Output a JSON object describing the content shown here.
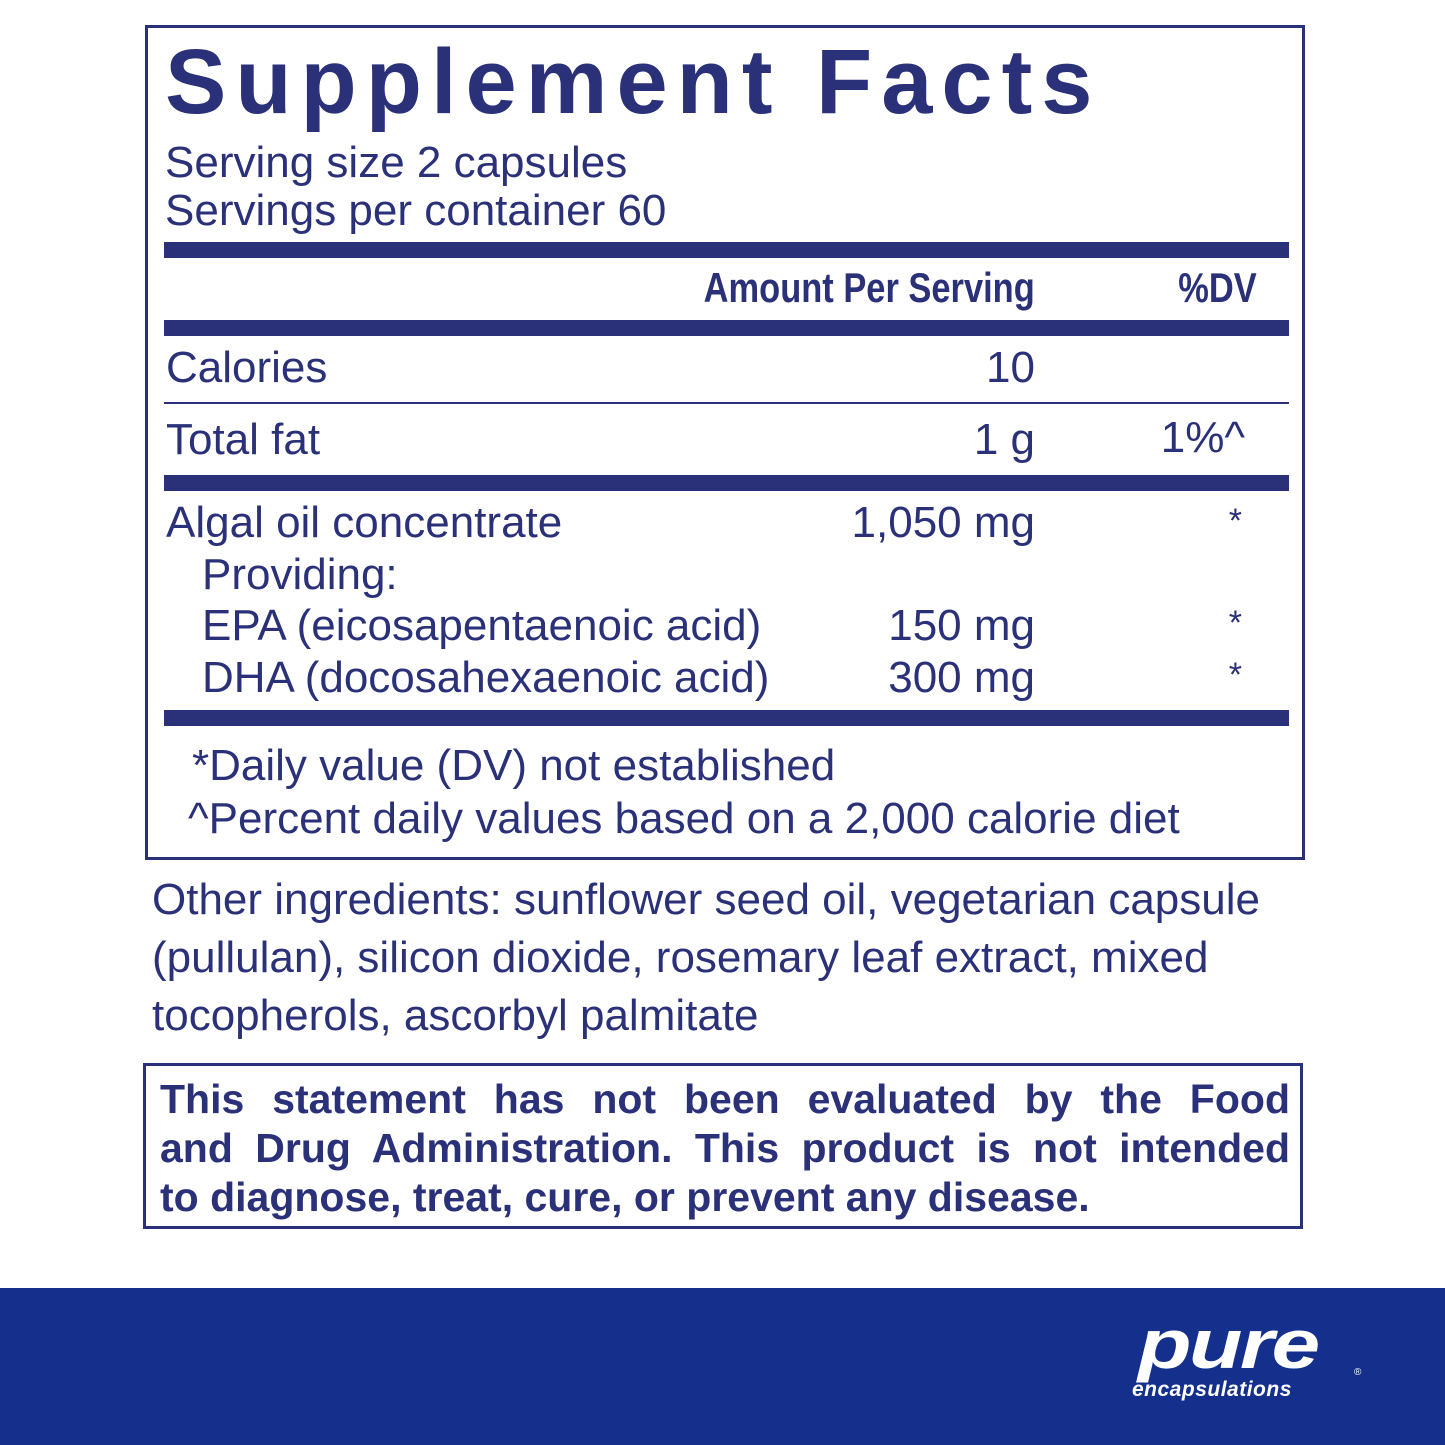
{
  "panel": {
    "title": "Supplement Facts",
    "serving_size": "Serving size 2 capsules",
    "servings_per_container": "Servings per container 60",
    "header": {
      "amount": "Amount Per Serving",
      "dv": "%DV"
    },
    "rows": [
      {
        "name": "Calories",
        "amount": "10",
        "dv": ""
      },
      {
        "name": "Total fat",
        "amount": "1 g",
        "dv": "1%^"
      },
      {
        "name": "Algal oil concentrate",
        "amount": "1,050 mg",
        "dv": "*"
      },
      {
        "name": "Providing:",
        "amount": "",
        "dv": ""
      },
      {
        "name": "EPA (eicosapentaenoic acid)",
        "amount": "150 mg",
        "dv": "*"
      },
      {
        "name": "DHA (docosahexaenoic acid)",
        "amount": "300 mg",
        "dv": "*"
      }
    ],
    "footnotes": [
      "*Daily value (DV) not established",
      "^Percent daily values based on a 2,000 calorie diet"
    ]
  },
  "other_ingredients": [
    "Other ingredients: sunflower seed oil, vegetarian capsule",
    "(pullulan), silicon dioxide, rosemary leaf extract, mixed",
    "tocopherols, ascorbyl palmitate"
  ],
  "disclaimer": [
    "This statement has not been evaluated by the Food",
    "and Drug Administration. This product is not intended",
    "to diagnose, treat, cure, or prevent any disease."
  ],
  "brand": {
    "name": "pure",
    "sub": "encapsulations",
    "mark": "®",
    "color": "#14308c"
  },
  "text_color": "#2b3179"
}
